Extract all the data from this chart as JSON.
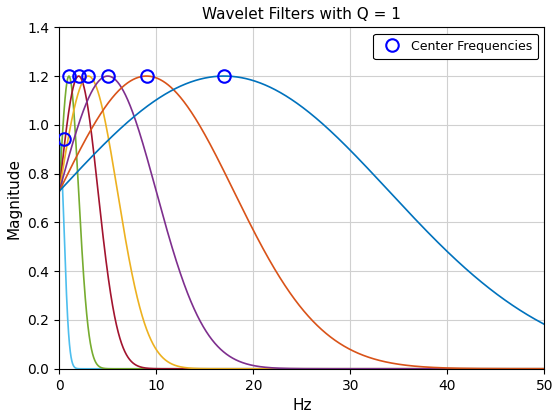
{
  "title": "Wavelet Filters with Q = 1",
  "xlabel": "Hz",
  "ylabel": "Magnitude",
  "xlim": [
    0,
    50
  ],
  "ylim": [
    0,
    1.4
  ],
  "xticks": [
    0,
    10,
    20,
    30,
    40,
    50
  ],
  "yticks": [
    0,
    0.2,
    0.4,
    0.6,
    0.8,
    1.0,
    1.2,
    1.4
  ],
  "Q": 1,
  "center_frequencies": [
    0.5,
    1.0,
    2.0,
    3.0,
    5.0,
    9.0,
    17.0
  ],
  "colors": [
    "#77AC30",
    "#D95319",
    "#EDB120",
    "#7E2F8E",
    "#77AC30",
    "#D95319",
    "#0072BD"
  ],
  "colors_ordered": [
    "#4DBEEE",
    "#77AC30",
    "#A2142F",
    "#EDB120",
    "#7E2F8E",
    "#D95319",
    "#0072BD"
  ],
  "peak_magnitude": 1.2,
  "low_freq_peak": 0.94,
  "legend_label": "Center Frequencies",
  "marker_color": "#0000FF",
  "grid_color": "#d0d0d0",
  "background_color": "#ffffff",
  "filter_colors": [
    "#4DBEEE",
    "#77AC30",
    "#A2142F",
    "#EDB120",
    "#7E2F8E",
    "#D95319",
    "#0072BD"
  ],
  "sigma_factor": 3.0,
  "center_freq_markers": [
    0.5,
    1.0,
    2.0,
    3.0,
    5.0,
    9.0,
    17.0
  ],
  "center_freq_marker_mags": [
    0.94,
    1.2,
    1.2,
    1.2,
    1.2,
    1.2,
    1.2
  ]
}
